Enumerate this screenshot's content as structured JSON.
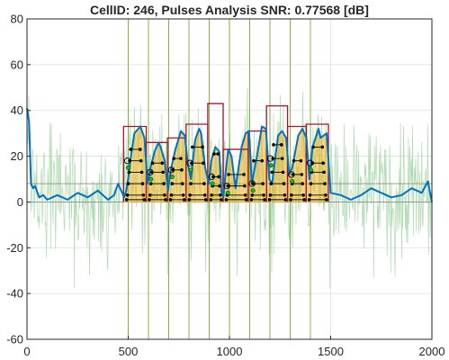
{
  "chart_data": {
    "type": "line",
    "title": "CellID: 246, Pulses Analysis  SNR: 0.77568 [dB]",
    "xlim": [
      0,
      2000
    ],
    "ylim": [
      -60,
      80
    ],
    "x_ticks": [
      0,
      500,
      1000,
      1500,
      2000
    ],
    "y_ticks": [
      -60,
      -40,
      -20,
      0,
      20,
      40,
      60,
      80
    ],
    "grid": true,
    "colors": {
      "raw_signal": "#a9d6a9",
      "smoothed": "#0072bd",
      "boundary": "#77ac30",
      "pulse_box": "#a2142f",
      "threshold": "#8c8c8c",
      "fill": "#edb120",
      "marker_line": "#000000",
      "marker_highlight": "#00cc00"
    },
    "threshold_lines": [
      0,
      8
    ],
    "boundaries": [
      500,
      600,
      700,
      800,
      900,
      1000,
      1100,
      1200,
      1300,
      1400
    ],
    "series": [
      {
        "role": "smoothed",
        "x": [
          0,
          10,
          20,
          30,
          40,
          60,
          80,
          100,
          150,
          200,
          250,
          300,
          350,
          400,
          430,
          450,
          470,
          480,
          490,
          500,
          510,
          530,
          560,
          580,
          595,
          610,
          630,
          650,
          660,
          680,
          697,
          710,
          730,
          760,
          780,
          795,
          810,
          830,
          850,
          860,
          870,
          880,
          898,
          910,
          930,
          950,
          960,
          970,
          980,
          994,
          1010,
          1030,
          1060,
          1080,
          1097,
          1110,
          1140,
          1160,
          1180,
          1197,
          1210,
          1240,
          1260,
          1280,
          1295,
          1310,
          1340,
          1360,
          1380,
          1395,
          1410,
          1440,
          1450,
          1480,
          1500,
          1550,
          1600,
          1650,
          1700,
          1750,
          1800,
          1850,
          1900,
          1950,
          1980,
          2000
        ],
        "y": [
          41,
          35,
          8,
          6,
          7,
          2,
          3,
          1,
          3,
          1,
          4,
          2,
          5,
          1,
          3,
          8,
          4,
          2,
          5,
          10,
          18,
          30,
          33,
          28,
          8,
          15,
          22,
          26,
          24,
          18,
          5,
          14,
          22,
          31,
          29,
          16,
          10,
          27,
          32,
          30,
          22,
          15,
          8,
          18,
          24,
          22,
          5,
          2,
          12,
          23,
          20,
          6,
          24,
          30,
          31,
          8,
          22,
          33,
          32,
          10,
          8,
          29,
          31,
          28,
          12,
          15,
          29,
          32,
          28,
          10,
          24,
          32,
          28,
          30,
          4,
          3,
          1,
          3,
          6,
          4,
          2,
          3,
          6,
          4,
          9,
          0
        ]
      }
    ],
    "pulse_boxes": [
      {
        "x0": 477,
        "x1": 589,
        "y": 33
      },
      {
        "x0": 589,
        "x1": 694,
        "y": 26
      },
      {
        "x0": 694,
        "x1": 786,
        "y": 28
      },
      {
        "x0": 786,
        "x1": 893,
        "y": 34
      },
      {
        "x0": 893,
        "x1": 969,
        "y": 43
      },
      {
        "x0": 969,
        "x1": 1093,
        "y": 23
      },
      {
        "x0": 1093,
        "x1": 1183,
        "y": 31
      },
      {
        "x0": 1183,
        "x1": 1287,
        "y": 42
      },
      {
        "x0": 1287,
        "x1": 1379,
        "y": 33
      },
      {
        "x0": 1379,
        "x1": 1489,
        "y": 34
      }
    ],
    "marker_levels": [
      [
        1,
        3,
        8,
        13,
        18,
        23
      ],
      [
        1,
        3,
        8,
        13,
        17
      ],
      [
        1,
        3,
        8,
        14,
        19
      ],
      [
        1,
        3,
        8,
        17,
        24
      ],
      [
        1,
        3,
        7,
        11,
        21
      ],
      [
        1,
        3,
        7,
        12
      ],
      [
        1,
        3,
        8,
        18
      ],
      [
        1,
        3,
        8,
        13,
        19,
        25
      ],
      [
        1,
        3,
        8,
        12,
        18
      ],
      [
        1,
        3,
        8,
        13,
        17,
        24
      ]
    ]
  }
}
